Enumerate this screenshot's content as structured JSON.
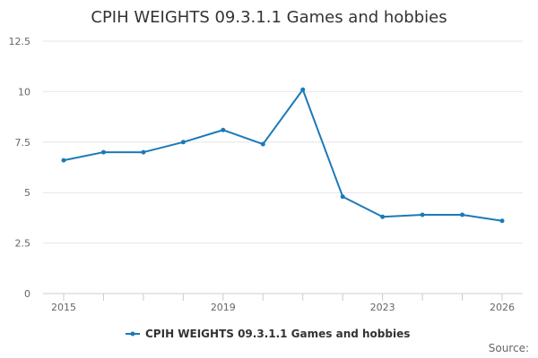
{
  "chart_data": {
    "type": "line",
    "title": "CPIH WEIGHTS 09.3.1.1 Games and hobbies",
    "xlabel": "",
    "ylabel": "",
    "x": [
      2015,
      2016,
      2017,
      2018,
      2019,
      2020,
      2021,
      2022,
      2023,
      2024,
      2025,
      2026
    ],
    "x_tick_labels": [
      "2015",
      "2019",
      "2023",
      "2026"
    ],
    "x_tick_values": [
      2015,
      2019,
      2023,
      2026
    ],
    "ylim": [
      0,
      12.5
    ],
    "y_tick_values": [
      0,
      2.5,
      5,
      7.5,
      10,
      12.5
    ],
    "y_tick_labels": [
      "0",
      "2.5",
      "5",
      "7.5",
      "10",
      "12.5"
    ],
    "grid": "horizontal",
    "legend_position": "bottom",
    "series": [
      {
        "name": "CPIH WEIGHTS 09.3.1.1 Games and hobbies",
        "color": "#1a7ab8",
        "values": [
          6.6,
          7.0,
          7.0,
          7.5,
          8.1,
          7.4,
          10.1,
          4.8,
          3.8,
          3.9,
          3.9,
          3.6
        ]
      }
    ],
    "source_label": "Source:"
  }
}
